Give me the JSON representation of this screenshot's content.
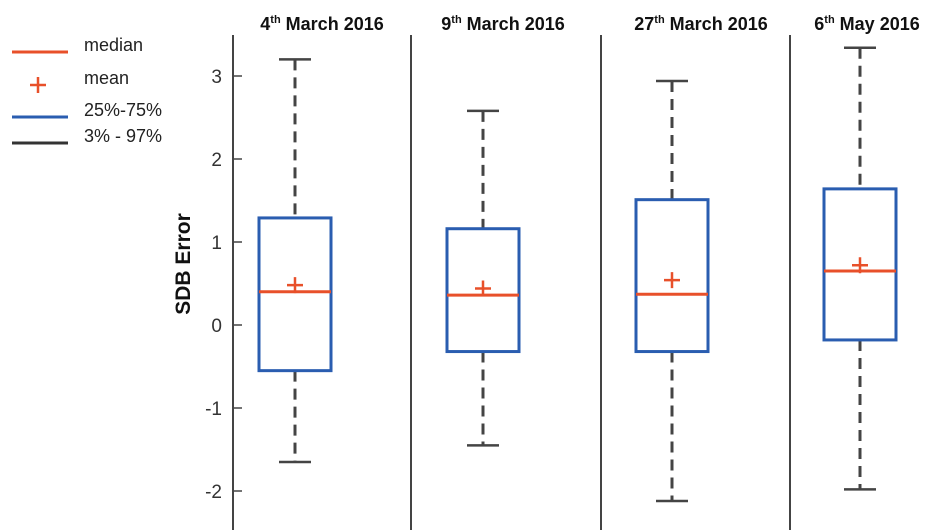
{
  "chart_data": {
    "type": "box",
    "ylabel": "SDB Error",
    "ylim": [
      -2.4,
      3.5
    ],
    "yticks": [
      3,
      2,
      1,
      0,
      -1,
      -2
    ],
    "ytick_labels": [
      "3",
      "2",
      "1",
      "0",
      "-1",
      "-2"
    ],
    "grid": false,
    "legend_position": "top-left",
    "legend": [
      {
        "label": "median",
        "kind": "line",
        "color": "#e8502a"
      },
      {
        "label": "mean",
        "kind": "plus",
        "color": "#e8502a"
      },
      {
        "label": "25%-75%",
        "kind": "line",
        "color": "#2a5db0"
      },
      {
        "label": "3% -  97%",
        "kind": "line",
        "color": "#333333"
      }
    ],
    "colors": {
      "box": "#2a5db0",
      "median": "#e8502a",
      "mean": "#e8502a",
      "whisker": "#444444"
    },
    "panels": [
      {
        "title_num": "4",
        "title_sup": "th",
        "title_rest": " March 2016",
        "whisker_low": -1.65,
        "q1": -0.55,
        "median": 0.4,
        "mean": 0.48,
        "q3": 1.29,
        "whisker_high": 3.2
      },
      {
        "title_num": "9",
        "title_sup": "th",
        "title_rest": " March 2016",
        "whisker_low": -1.45,
        "q1": -0.32,
        "median": 0.36,
        "mean": 0.44,
        "q3": 1.16,
        "whisker_high": 2.58
      },
      {
        "title_num": "27",
        "title_sup": "th",
        "title_rest": " March 2016",
        "whisker_low": -2.12,
        "q1": -0.32,
        "median": 0.37,
        "mean": 0.54,
        "q3": 1.51,
        "whisker_high": 2.94
      },
      {
        "title_num": "6",
        "title_sup": "th",
        "title_rest": " May 2016",
        "whisker_low": -1.98,
        "q1": -0.18,
        "median": 0.65,
        "mean": 0.72,
        "q3": 1.64,
        "whisker_high": 3.34
      }
    ]
  }
}
